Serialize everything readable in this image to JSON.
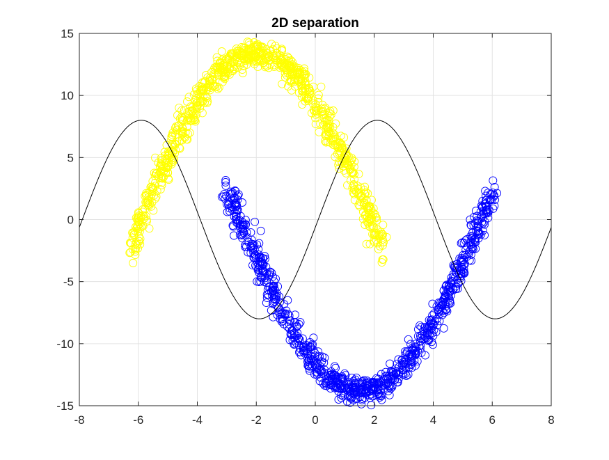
{
  "chart_data": {
    "type": "scatter",
    "title": "2D separation",
    "xlabel": "",
    "ylabel": "",
    "xlim": [
      -8,
      8
    ],
    "ylim": [
      -15,
      15
    ],
    "grid": true,
    "legend": "none",
    "x_ticks": [
      "-8",
      "-6",
      "-4",
      "-2",
      "0",
      "2",
      "4",
      "6",
      "8"
    ],
    "y_ticks": [
      "-15",
      "-10",
      "-5",
      "0",
      "5",
      "10",
      "15"
    ],
    "series": [
      {
        "kind": "scatter",
        "marker": "circle-open",
        "color": "#ffff00",
        "arc": {
          "x_from": -6.3,
          "x_to": 2.3,
          "center_x": -2.0,
          "half_width": 4.3,
          "amplitude": 15.9,
          "offset": -2.4
        },
        "noise": 1.0,
        "count": 900
      },
      {
        "kind": "scatter",
        "marker": "circle-open",
        "color": "#0000ff",
        "arc": {
          "x_from": -3.0,
          "x_to": 6.1,
          "center_x": 1.55,
          "half_width": 4.55,
          "amplitude": 16.4,
          "offset": 2.6
        },
        "noise": 1.0,
        "count": 900
      },
      {
        "kind": "line",
        "color": "#000000",
        "equation": "y = 8*sin(x*pi/4 + 0.1*pi... approx)",
        "x": [
          -8,
          -7.5,
          -7,
          -6.5,
          -6,
          -5.5,
          -5,
          -4.5,
          -4,
          -3.5,
          -3,
          -2.5,
          -2,
          -1.5,
          -1,
          -0.5,
          0,
          0.5,
          1,
          1.5,
          2,
          2.5,
          3,
          3.5,
          4,
          4.5,
          5,
          5.5,
          6,
          6.5,
          7,
          7.5,
          8
        ],
        "y": [
          0.98,
          -2.1,
          -4.9,
          -7.1,
          -8.0,
          -7.5,
          -5.8,
          -3.3,
          -0.2,
          2.9,
          5.6,
          7.4,
          8.0,
          7.2,
          5.2,
          2.5,
          -0.6,
          -3.6,
          -6.1,
          -7.6,
          -7.9,
          -7.0,
          -4.9,
          -2.1,
          0.9,
          3.9,
          6.3,
          7.7,
          7.9,
          6.9,
          4.7,
          1.8,
          -1.0
        ]
      }
    ]
  }
}
